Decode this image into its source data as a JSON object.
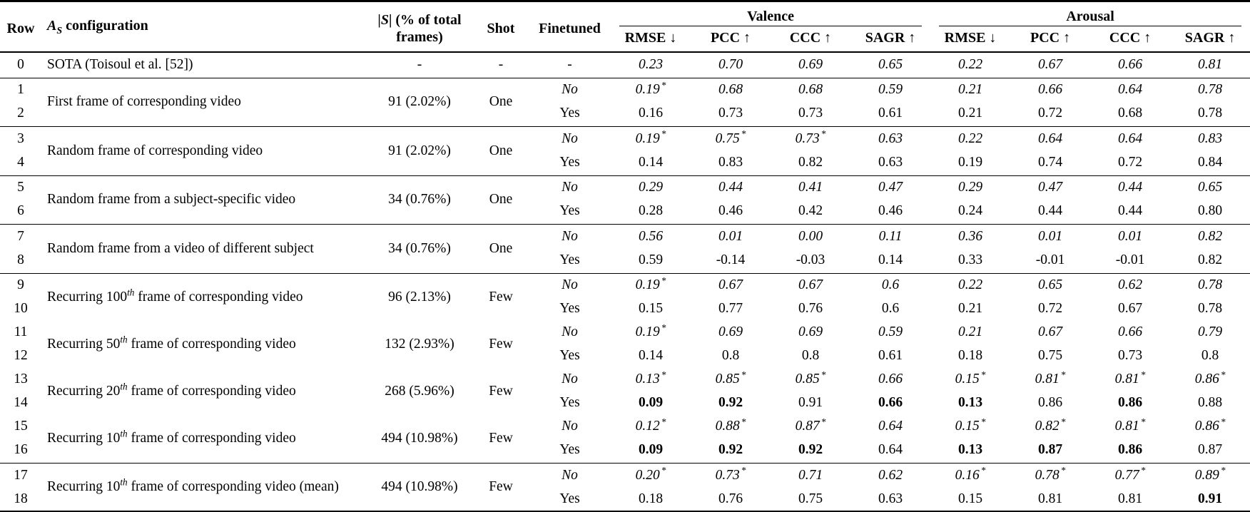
{
  "table": {
    "headers": {
      "row": "Row",
      "config": {
        "pre": "A",
        "sub": "S",
        "post": " configuration"
      },
      "s_col": {
        "line1_pre": "|",
        "line1_it": "S",
        "line1_post": "| (% of total",
        "line2": "frames)"
      },
      "shot": "Shot",
      "finetuned": "Finetuned",
      "valence": "Valence",
      "arousal": "Arousal",
      "metrics": [
        "RMSE ↓",
        "PCC ↑",
        "CCC ↑",
        "SAGR ↑"
      ]
    },
    "groups": [
      {
        "row_labels": [
          "0"
        ],
        "config": {
          "pre": "SOTA (Toisoul et al. [52])",
          "sup": "",
          "post": ""
        },
        "s": "-",
        "shot": "-",
        "rule_below": true,
        "subrows": [
          {
            "finetuned": "-",
            "italic": true,
            "bold": [],
            "values": [
              "0.23",
              "0.70",
              "0.69",
              "0.65",
              "0.22",
              "0.67",
              "0.66",
              "0.81"
            ]
          }
        ]
      },
      {
        "row_labels": [
          "1",
          "2"
        ],
        "config": {
          "pre": "First frame of corresponding video",
          "sup": "",
          "post": ""
        },
        "s": "91 (2.02%)",
        "shot": "One",
        "rule_below": true,
        "subrows": [
          {
            "finetuned": "No",
            "italic": true,
            "bold": [],
            "values": [
              "0.19*",
              "0.68",
              "0.68",
              "0.59",
              "0.21",
              "0.66",
              "0.64",
              "0.78"
            ]
          },
          {
            "finetuned": "Yes",
            "italic": false,
            "bold": [],
            "values": [
              "0.16",
              "0.73",
              "0.73",
              "0.61",
              "0.21",
              "0.72",
              "0.68",
              "0.78"
            ]
          }
        ]
      },
      {
        "row_labels": [
          "3",
          "4"
        ],
        "config": {
          "pre": "Random frame of corresponding video",
          "sup": "",
          "post": ""
        },
        "s": "91 (2.02%)",
        "shot": "One",
        "rule_below": true,
        "subrows": [
          {
            "finetuned": "No",
            "italic": true,
            "bold": [],
            "values": [
              "0.19*",
              "0.75*",
              "0.73*",
              "0.63",
              "0.22",
              "0.64",
              "0.64",
              "0.83"
            ]
          },
          {
            "finetuned": "Yes",
            "italic": false,
            "bold": [],
            "values": [
              "0.14",
              "0.83",
              "0.82",
              "0.63",
              "0.19",
              "0.74",
              "0.72",
              "0.84"
            ]
          }
        ]
      },
      {
        "row_labels": [
          "5",
          "6"
        ],
        "config": {
          "pre": "Random frame from a subject-specific video",
          "sup": "",
          "post": ""
        },
        "s": "34 (0.76%)",
        "shot": "One",
        "rule_below": true,
        "subrows": [
          {
            "finetuned": "No",
            "italic": true,
            "bold": [],
            "values": [
              "0.29",
              "0.44",
              "0.41",
              "0.47",
              "0.29",
              "0.47",
              "0.44",
              "0.65"
            ]
          },
          {
            "finetuned": "Yes",
            "italic": false,
            "bold": [],
            "values": [
              "0.28",
              "0.46",
              "0.42",
              "0.46",
              "0.24",
              "0.44",
              "0.44",
              "0.80"
            ]
          }
        ]
      },
      {
        "row_labels": [
          "7",
          "8"
        ],
        "config": {
          "pre": "Random frame from a video of different subject",
          "sup": "",
          "post": ""
        },
        "s": "34 (0.76%)",
        "shot": "One",
        "rule_below": true,
        "subrows": [
          {
            "finetuned": "No",
            "italic": true,
            "bold": [],
            "values": [
              "0.56",
              "0.01",
              "0.00",
              "0.11",
              "0.36",
              "0.01",
              "0.01",
              "0.82"
            ]
          },
          {
            "finetuned": "Yes",
            "italic": false,
            "bold": [],
            "values": [
              "0.59",
              "-0.14",
              "-0.03",
              "0.14",
              "0.33",
              "-0.01",
              "-0.01",
              "0.82"
            ]
          }
        ]
      },
      {
        "row_labels": [
          "9",
          "10"
        ],
        "config": {
          "pre": "Recurring 100",
          "sup": "th",
          "post": " frame of corresponding video"
        },
        "s": "96 (2.13%)",
        "shot": "Few",
        "rule_below": false,
        "subrows": [
          {
            "finetuned": "No",
            "italic": true,
            "bold": [],
            "values": [
              "0.19*",
              "0.67",
              "0.67",
              "0.6",
              "0.22",
              "0.65",
              "0.62",
              "0.78"
            ]
          },
          {
            "finetuned": "Yes",
            "italic": false,
            "bold": [],
            "values": [
              "0.15",
              "0.77",
              "0.76",
              "0.6",
              "0.21",
              "0.72",
              "0.67",
              "0.78"
            ]
          }
        ]
      },
      {
        "row_labels": [
          "11",
          "12"
        ],
        "config": {
          "pre": "Recurring 50",
          "sup": "th",
          "post": " frame of corresponding video"
        },
        "s": "132 (2.93%)",
        "shot": "Few",
        "rule_below": false,
        "subrows": [
          {
            "finetuned": "No",
            "italic": true,
            "bold": [],
            "values": [
              "0.19*",
              "0.69",
              "0.69",
              "0.59",
              "0.21",
              "0.67",
              "0.66",
              "0.79"
            ]
          },
          {
            "finetuned": "Yes",
            "italic": false,
            "bold": [],
            "values": [
              "0.14",
              "0.8",
              "0.8",
              "0.61",
              "0.18",
              "0.75",
              "0.73",
              "0.8"
            ]
          }
        ]
      },
      {
        "row_labels": [
          "13",
          "14"
        ],
        "config": {
          "pre": "Recurring 20",
          "sup": "th",
          "post": " frame of corresponding video"
        },
        "s": "268 (5.96%)",
        "shot": "Few",
        "rule_below": false,
        "subrows": [
          {
            "finetuned": "No",
            "italic": true,
            "bold": [],
            "values": [
              "0.13*",
              "0.85*",
              "0.85*",
              "0.66",
              "0.15*",
              "0.81*",
              "0.81*",
              "0.86*"
            ]
          },
          {
            "finetuned": "Yes",
            "italic": false,
            "bold": [
              0,
              1,
              3,
              4,
              6
            ],
            "values": [
              "0.09",
              "0.92",
              "0.91",
              "0.66",
              "0.13",
              "0.86",
              "0.86",
              "0.88"
            ]
          }
        ]
      },
      {
        "row_labels": [
          "15",
          "16"
        ],
        "config": {
          "pre": "Recurring 10",
          "sup": "th",
          "post": " frame of corresponding video"
        },
        "s": "494 (10.98%)",
        "shot": "Few",
        "rule_below": true,
        "subrows": [
          {
            "finetuned": "No",
            "italic": true,
            "bold": [],
            "values": [
              "0.12*",
              "0.88*",
              "0.87*",
              "0.64",
              "0.15*",
              "0.82*",
              "0.81*",
              "0.86*"
            ]
          },
          {
            "finetuned": "Yes",
            "italic": false,
            "bold": [
              0,
              1,
              2,
              4,
              5,
              6
            ],
            "values": [
              "0.09",
              "0.92",
              "0.92",
              "0.64",
              "0.13",
              "0.87",
              "0.86",
              "0.87"
            ]
          }
        ]
      },
      {
        "row_labels": [
          "17",
          "18"
        ],
        "config": {
          "pre": "Recurring 10",
          "sup": "th",
          "post": " frame of corresponding video (mean)"
        },
        "s": "494 (10.98%)",
        "shot": "Few",
        "rule_below": false,
        "subrows": [
          {
            "finetuned": "No",
            "italic": true,
            "bold": [],
            "values": [
              "0.20*",
              "0.73*",
              "0.71",
              "0.62",
              "0.16*",
              "0.78*",
              "0.77*",
              "0.89*"
            ]
          },
          {
            "finetuned": "Yes",
            "italic": false,
            "bold": [
              7
            ],
            "values": [
              "0.18",
              "0.76",
              "0.75",
              "0.63",
              "0.15",
              "0.81",
              "0.81",
              "0.91"
            ]
          }
        ]
      }
    ]
  }
}
